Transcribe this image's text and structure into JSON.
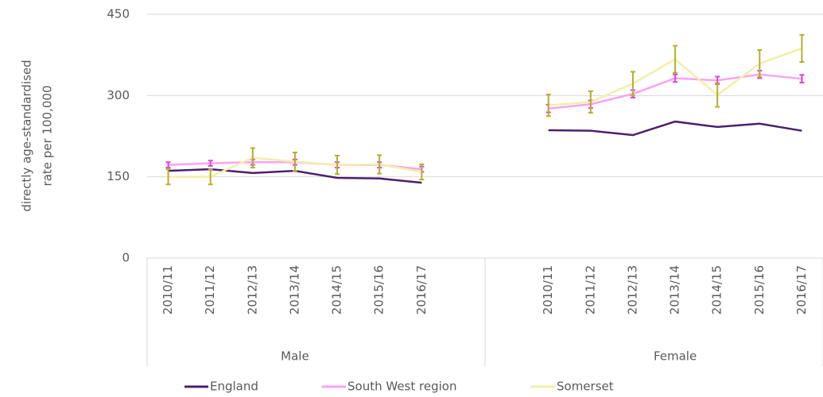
{
  "chart_data": {
    "type": "line",
    "y_label": [
      "directly age-standardised",
      "rate per 100,000"
    ],
    "groups": [
      {
        "name": "Male",
        "categories": [
          "2010/11",
          "2011/12",
          "2012/13",
          "2013/14",
          "2014/15",
          "2015/16",
          "2016/17"
        ]
      },
      {
        "name": "Female",
        "categories": [
          "2010/11",
          "2011/12",
          "2012/13",
          "2013/14",
          "2014/15",
          "2015/16",
          "2016/17"
        ]
      }
    ],
    "series": [
      {
        "name": "England",
        "color": "#4b1f6f",
        "values": [
          161,
          164,
          157,
          161,
          148,
          147,
          139,
          236,
          235,
          227,
          252,
          242,
          248,
          235
        ]
      },
      {
        "name": "South West region",
        "color": "#f9a3f3",
        "error_color": "#e33fe0",
        "values": [
          172,
          175,
          177,
          177,
          172,
          172,
          164,
          276,
          284,
          303,
          332,
          328,
          339,
          331
        ],
        "errors": [
          5,
          5,
          5,
          5,
          5,
          5,
          5,
          7,
          7,
          7,
          7,
          7,
          7,
          7
        ]
      },
      {
        "name": "Somerset",
        "color": "#f2efa8",
        "error_color": "#b3b02a",
        "values": [
          150,
          150,
          185,
          178,
          172,
          173,
          159,
          282,
          288,
          322,
          367,
          301,
          359,
          387
        ],
        "errors": [
          14,
          14,
          18,
          17,
          17,
          17,
          14,
          20,
          20,
          22,
          25,
          22,
          25,
          25
        ]
      }
    ],
    "ylim": [
      0,
      450
    ],
    "yticks": [
      0,
      150,
      300,
      450
    ],
    "grid": true
  }
}
